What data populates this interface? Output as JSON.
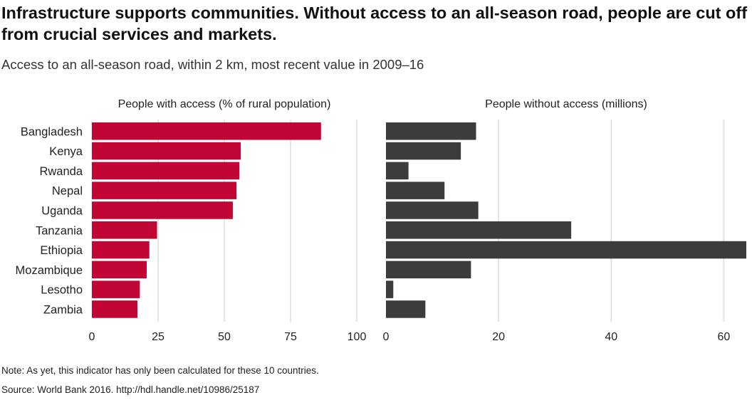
{
  "title": "Infrastructure supports communities. Without access to an all-season road, people are cut off from crucial services and markets.",
  "subtitle": "Access to an all-season road, within 2 km, most recent value in 2009–16",
  "note": "Note: As yet, this indicator has only been calculated for these 10 countries.",
  "source": "Source: World Bank 2016. http://hdl.handle.net/10986/25187",
  "colors": {
    "left_bar": "#c10534",
    "right_bar": "#3c3c3c",
    "grid": "#dddddd"
  },
  "chart_data": [
    {
      "type": "bar",
      "orientation": "horizontal",
      "title": "People with access (% of rural population)",
      "categories": [
        "Bangladesh",
        "Kenya",
        "Rwanda",
        "Nepal",
        "Uganda",
        "Tanzania",
        "Ethiopia",
        "Mozambique",
        "Lesotho",
        "Zambia"
      ],
      "values": [
        86.5,
        56.2,
        55.7,
        54.6,
        53.2,
        24.6,
        21.7,
        20.7,
        18.1,
        17.2
      ],
      "xlim": [
        0,
        100
      ],
      "xticks": [
        0,
        25,
        50,
        75,
        100
      ],
      "grid": true
    },
    {
      "type": "bar",
      "orientation": "horizontal",
      "title": "People without access (millions)",
      "categories": [
        "Bangladesh",
        "Kenya",
        "Rwanda",
        "Nepal",
        "Uganda",
        "Tanzania",
        "Ethiopia",
        "Mozambique",
        "Lesotho",
        "Zambia"
      ],
      "values": [
        16.0,
        13.3,
        4.0,
        10.4,
        16.4,
        32.9,
        64.0,
        15.1,
        1.3,
        7.0
      ],
      "xlim": [
        0,
        64
      ],
      "xticks": [
        0,
        20,
        40,
        60
      ],
      "grid": true
    }
  ]
}
